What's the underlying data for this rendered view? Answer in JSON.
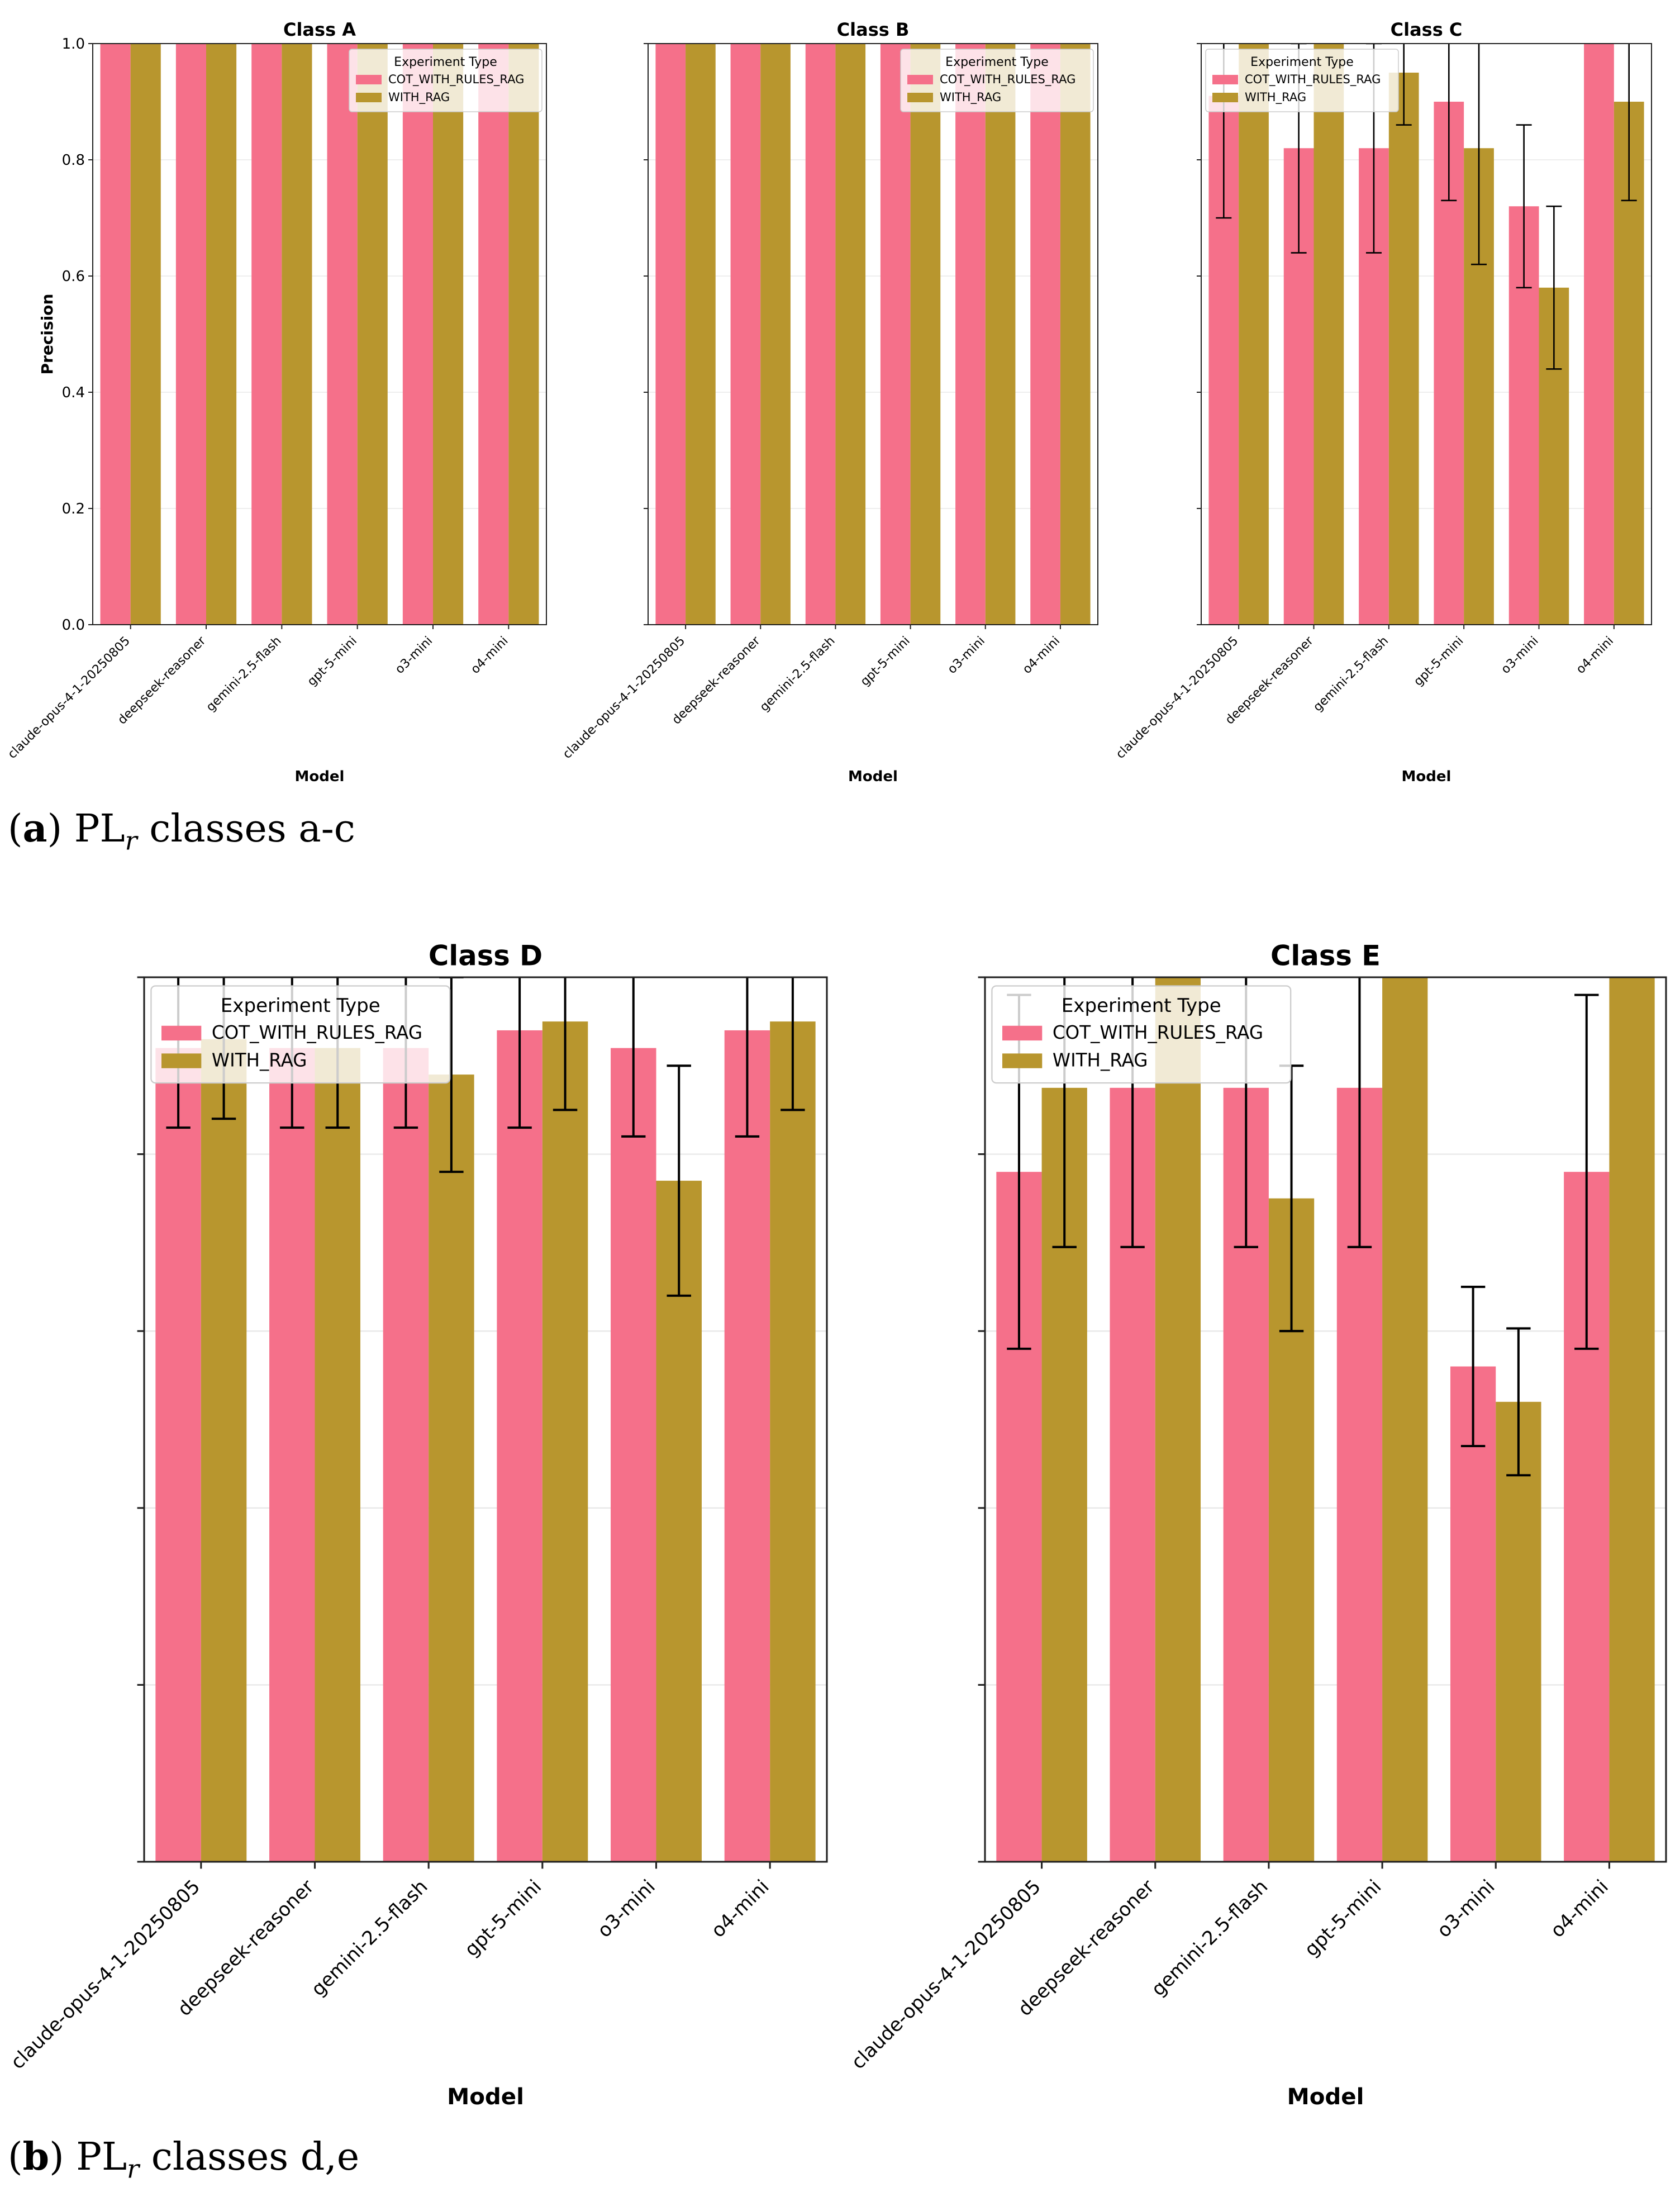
{
  "figure": {
    "caption_a": {
      "letter": "a",
      "prefix": "PL",
      "sub": "r",
      "text": "classes a-c"
    },
    "caption_b": {
      "letter": "b",
      "prefix": "PL",
      "sub": "r",
      "text": "classes d,e"
    }
  },
  "colors": {
    "cot": "#F5708A",
    "rag": "#B8962E"
  },
  "chart_data": [
    {
      "type": "bar",
      "title": "Class A",
      "xlabel": "Model",
      "ylabel": "Precision",
      "ylim": [
        0,
        1.0
      ],
      "yticks": [
        0.0,
        0.2,
        0.4,
        0.6,
        0.8,
        1.0
      ],
      "ytick_labels": [
        "0.0",
        "0.2",
        "0.4",
        "0.6",
        "0.8",
        "1.0"
      ],
      "legend_title": "Experiment Type",
      "legend_loc": "top-right",
      "categories": [
        "claude-opus-4-1-20250805",
        "deepseek-reasoner",
        "gemini-2.5-flash",
        "gpt-5-mini",
        "o3-mini",
        "o4-mini"
      ],
      "series": [
        {
          "name": "COT_WITH_RULES_RAG",
          "values": [
            1.0,
            1.0,
            1.0,
            1.0,
            1.0,
            1.0
          ],
          "err": [
            null,
            null,
            null,
            null,
            null,
            null
          ]
        },
        {
          "name": "WITH_RAG",
          "values": [
            1.0,
            1.0,
            1.0,
            1.0,
            1.0,
            1.0
          ],
          "err": [
            null,
            null,
            null,
            null,
            null,
            null
          ]
        }
      ]
    },
    {
      "type": "bar",
      "title": "Class B",
      "xlabel": "Model",
      "ylabel": "",
      "ylim": [
        0,
        1.0
      ],
      "yticks": [
        0.0,
        0.2,
        0.4,
        0.6,
        0.8,
        1.0
      ],
      "ytick_labels": [],
      "legend_title": "Experiment Type",
      "legend_loc": "top-right",
      "categories": [
        "claude-opus-4-1-20250805",
        "deepseek-reasoner",
        "gemini-2.5-flash",
        "gpt-5-mini",
        "o3-mini",
        "o4-mini"
      ],
      "series": [
        {
          "name": "COT_WITH_RULES_RAG",
          "values": [
            1.0,
            1.0,
            1.0,
            1.0,
            1.0,
            1.0
          ],
          "err": [
            null,
            null,
            null,
            null,
            null,
            null
          ]
        },
        {
          "name": "WITH_RAG",
          "values": [
            1.0,
            1.0,
            1.0,
            1.0,
            1.0,
            1.0
          ],
          "err": [
            null,
            null,
            null,
            null,
            null,
            null
          ]
        }
      ]
    },
    {
      "type": "bar",
      "title": "Class C",
      "xlabel": "Model",
      "ylabel": "",
      "ylim": [
        0,
        1.0
      ],
      "yticks": [
        0.0,
        0.2,
        0.4,
        0.6,
        0.8,
        1.0
      ],
      "ytick_labels": [],
      "legend_title": "Experiment Type",
      "legend_loc": "top-left",
      "categories": [
        "claude-opus-4-1-20250805",
        "deepseek-reasoner",
        "gemini-2.5-flash",
        "gpt-5-mini",
        "o3-mini",
        "o4-mini"
      ],
      "series": [
        {
          "name": "COT_WITH_RULES_RAG",
          "values": [
            0.91,
            0.82,
            0.82,
            0.9,
            0.72,
            1.0
          ],
          "err": [
            0.21,
            0.18,
            0.18,
            0.17,
            0.14,
            null
          ]
        },
        {
          "name": "WITH_RAG",
          "values": [
            1.0,
            1.0,
            0.95,
            0.82,
            0.58,
            0.9
          ],
          "err": [
            null,
            null,
            0.09,
            0.2,
            0.14,
            0.17
          ]
        }
      ]
    },
    {
      "type": "bar",
      "title": "Class D",
      "xlabel": "Model",
      "ylabel": "",
      "ylim": [
        0,
        1.0
      ],
      "yticks": [
        0.0,
        0.2,
        0.4,
        0.6,
        0.8,
        1.0
      ],
      "ytick_labels": [],
      "legend_title": "Experiment Type",
      "legend_loc": "top-left",
      "categories": [
        "claude-opus-4-1-20250805",
        "deepseek-reasoner",
        "gemini-2.5-flash",
        "gpt-5-mini",
        "o3-mini",
        "o4-mini"
      ],
      "series": [
        {
          "name": "COT_WITH_RULES_RAG",
          "values": [
            0.92,
            0.92,
            0.92,
            0.94,
            0.92,
            0.94
          ],
          "err": [
            0.09,
            0.09,
            0.09,
            0.11,
            0.1,
            0.12
          ]
        },
        {
          "name": "WITH_RAG",
          "values": [
            0.93,
            0.92,
            0.89,
            0.95,
            0.77,
            0.95
          ],
          "err": [
            0.09,
            0.09,
            0.11,
            0.1,
            0.13,
            0.1
          ]
        }
      ]
    },
    {
      "type": "bar",
      "title": "Class E",
      "xlabel": "Model",
      "ylabel": "",
      "ylim": [
        0,
        1.0
      ],
      "yticks": [
        0.0,
        0.2,
        0.4,
        0.6,
        0.8,
        1.0
      ],
      "ytick_labels": [],
      "legend_title": "Experiment Type",
      "legend_loc": "top-left",
      "categories": [
        "claude-opus-4-1-20250805",
        "deepseek-reasoner",
        "gemini-2.5-flash",
        "gpt-5-mini",
        "o3-mini",
        "o4-mini"
      ],
      "series": [
        {
          "name": "COT_WITH_RULES_RAG",
          "values": [
            0.78,
            0.875,
            0.875,
            0.875,
            0.56,
            0.78
          ],
          "err": [
            0.2,
            0.18,
            0.18,
            0.18,
            0.09,
            0.2
          ]
        },
        {
          "name": "WITH_RAG",
          "values": [
            0.875,
            1.0,
            0.75,
            1.0,
            0.52,
            1.0
          ],
          "err": [
            0.18,
            null,
            0.15,
            null,
            0.083,
            null
          ]
        }
      ]
    }
  ]
}
